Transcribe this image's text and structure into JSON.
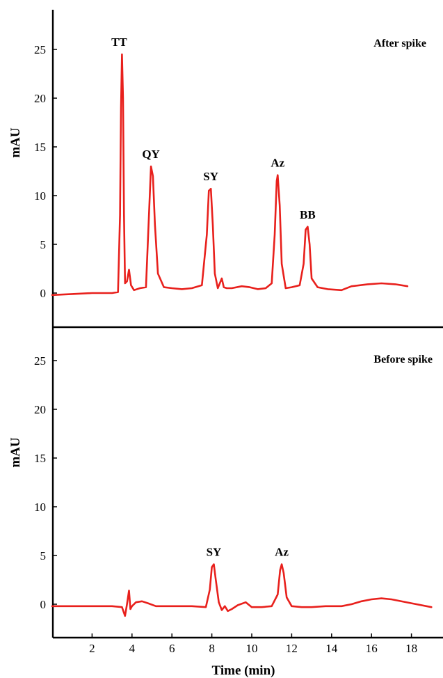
{
  "chart_data": [
    {
      "type": "line",
      "panel_label": "After spike",
      "ylabel": "mAU",
      "xlabel": "",
      "y_ticks": [
        0,
        5,
        10,
        15,
        20,
        25
      ],
      "ylim": [
        -3,
        29
      ],
      "xlim": [
        0,
        19
      ],
      "grid": false,
      "line_color": "#e8201c",
      "annotations": [
        {
          "text": "TT",
          "x": 3.5,
          "y": 24.5
        },
        {
          "text": "QY",
          "x": 4.95,
          "y": 13.0
        },
        {
          "text": "SY",
          "x": 7.95,
          "y": 10.7
        },
        {
          "text": "Az",
          "x": 11.3,
          "y": 12.1
        },
        {
          "text": "BB",
          "x": 12.8,
          "y": 6.8
        }
      ],
      "series": [
        {
          "x": [
            0.0,
            1.0,
            2.0,
            3.0,
            3.3,
            3.4,
            3.45,
            3.5,
            3.55,
            3.6,
            3.65,
            3.75,
            3.85,
            3.95,
            4.1,
            4.4,
            4.7,
            4.85,
            4.95,
            5.05,
            5.15,
            5.3,
            5.6,
            6.0,
            6.5,
            7.0,
            7.5,
            7.75,
            7.85,
            7.95,
            8.05,
            8.15,
            8.3,
            8.5,
            8.6,
            8.75,
            9.0,
            9.5,
            9.9,
            10.3,
            10.7,
            11.0,
            11.15,
            11.25,
            11.3,
            11.4,
            11.5,
            11.7,
            12.0,
            12.4,
            12.6,
            12.7,
            12.8,
            12.9,
            13.0,
            13.3,
            13.8,
            14.5,
            15.0,
            15.8,
            16.5,
            17.2,
            17.8
          ],
          "y": [
            -0.2,
            -0.1,
            0.0,
            0.0,
            0.1,
            8.0,
            19.0,
            24.5,
            20.0,
            8.0,
            1.0,
            1.2,
            2.4,
            0.8,
            0.3,
            0.5,
            0.6,
            8.0,
            13.0,
            12.0,
            7.0,
            2.0,
            0.6,
            0.5,
            0.4,
            0.5,
            0.8,
            6.0,
            10.5,
            10.7,
            7.0,
            2.0,
            0.5,
            1.5,
            0.6,
            0.5,
            0.5,
            0.7,
            0.6,
            0.4,
            0.5,
            1.0,
            6.0,
            11.5,
            12.1,
            9.0,
            3.0,
            0.5,
            0.6,
            0.8,
            3.0,
            6.5,
            6.8,
            5.0,
            1.5,
            0.6,
            0.4,
            0.3,
            0.7,
            0.9,
            1.0,
            0.9,
            0.7
          ]
        }
      ]
    },
    {
      "type": "line",
      "panel_label": "Before spike",
      "ylabel": "mAU",
      "xlabel": "Time (min)",
      "x_ticks": [
        2,
        4,
        6,
        8,
        10,
        12,
        14,
        16,
        18
      ],
      "y_ticks": [
        0,
        5,
        10,
        15,
        20,
        25
      ],
      "ylim": [
        -3,
        29
      ],
      "xlim": [
        0,
        19
      ],
      "grid": false,
      "line_color": "#e8201c",
      "annotations": [
        {
          "text": "SY",
          "x": 8.1,
          "y": 4.1
        },
        {
          "text": "Az",
          "x": 11.5,
          "y": 4.1
        }
      ],
      "series": [
        {
          "x": [
            0.0,
            1.0,
            2.0,
            3.0,
            3.5,
            3.65,
            3.75,
            3.85,
            3.92,
            4.0,
            4.2,
            4.5,
            4.8,
            5.2,
            6.0,
            7.0,
            7.7,
            7.9,
            8.0,
            8.1,
            8.2,
            8.35,
            8.5,
            8.65,
            8.8,
            9.0,
            9.3,
            9.7,
            10.0,
            10.5,
            11.0,
            11.3,
            11.42,
            11.5,
            11.6,
            11.75,
            12.0,
            12.5,
            13.0,
            13.7,
            14.5,
            15.0,
            15.5,
            16.0,
            16.5,
            17.0,
            18.0,
            19.0
          ],
          "y": [
            -0.2,
            -0.2,
            -0.2,
            -0.2,
            -0.3,
            -1.2,
            0.0,
            1.4,
            -0.5,
            -0.2,
            0.2,
            0.3,
            0.1,
            -0.2,
            -0.2,
            -0.2,
            -0.3,
            1.5,
            3.8,
            4.1,
            2.5,
            0.2,
            -0.6,
            -0.2,
            -0.7,
            -0.5,
            -0.1,
            0.2,
            -0.3,
            -0.3,
            -0.2,
            1.0,
            3.5,
            4.1,
            3.2,
            0.7,
            -0.2,
            -0.3,
            -0.3,
            -0.2,
            -0.2,
            0.0,
            0.3,
            0.5,
            0.6,
            0.5,
            0.1,
            -0.3
          ]
        }
      ]
    }
  ]
}
